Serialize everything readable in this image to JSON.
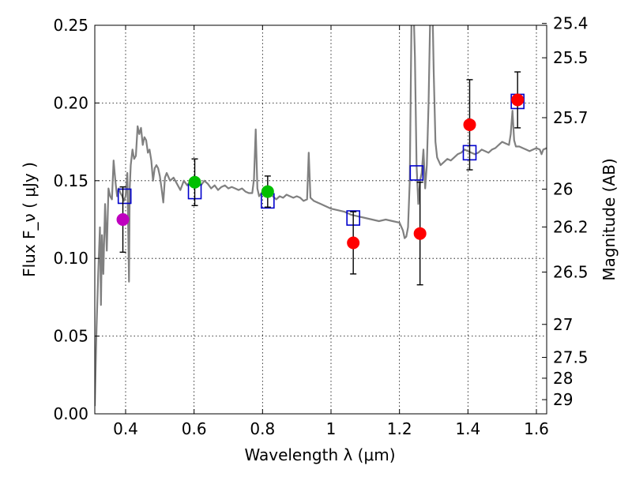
{
  "chart_data": {
    "type": "scatter",
    "xlabel": "Wavelength  λ (μm)",
    "ylabel": "Flux  F_ν  ( μJy )",
    "y2label": "Magnitude (AB)",
    "xlim": [
      0.31,
      1.63
    ],
    "ylim": [
      0.0,
      0.25
    ],
    "grid": true,
    "x_ticks": [
      {
        "value": 0.4,
        "label": "0.4"
      },
      {
        "value": 0.6,
        "label": "0.6"
      },
      {
        "value": 0.8,
        "label": "0.8"
      },
      {
        "value": 1.0,
        "label": "1"
      },
      {
        "value": 1.2,
        "label": "1.2"
      },
      {
        "value": 1.4,
        "label": "1.4"
      },
      {
        "value": 1.6,
        "label": "1.6"
      }
    ],
    "y_ticks": [
      {
        "value": 0.0,
        "label": "0.00"
      },
      {
        "value": 0.05,
        "label": "0.05"
      },
      {
        "value": 0.1,
        "label": "0.10"
      },
      {
        "value": 0.15,
        "label": "0.15"
      },
      {
        "value": 0.2,
        "label": "0.20"
      },
      {
        "value": 0.25,
        "label": "0.25"
      }
    ],
    "y2_ticks": [
      {
        "mag": 25.4,
        "label": "25.4"
      },
      {
        "mag": 25.5,
        "label": "25.5"
      },
      {
        "mag": 25.7,
        "label": "25.7"
      },
      {
        "mag": 26.0,
        "label": "26"
      },
      {
        "mag": 26.2,
        "label": "26.2"
      },
      {
        "mag": 26.5,
        "label": "26.5"
      },
      {
        "mag": 27.0,
        "label": "27"
      },
      {
        "mag": 27.5,
        "label": "27.5"
      },
      {
        "mag": 28.0,
        "label": "28"
      },
      {
        "mag": 29.0,
        "label": "29"
      }
    ],
    "series": [
      {
        "name": "model-sed",
        "kind": "line",
        "color": "#808080",
        "points": [
          [
            0.31,
            0.005
          ],
          [
            0.315,
            0.055
          ],
          [
            0.32,
            0.09
          ],
          [
            0.325,
            0.12
          ],
          [
            0.328,
            0.07
          ],
          [
            0.331,
            0.115
          ],
          [
            0.335,
            0.09
          ],
          [
            0.34,
            0.135
          ],
          [
            0.345,
            0.105
          ],
          [
            0.35,
            0.145
          ],
          [
            0.355,
            0.14
          ],
          [
            0.36,
            0.138
          ],
          [
            0.365,
            0.163
          ],
          [
            0.37,
            0.15
          ],
          [
            0.375,
            0.14
          ],
          [
            0.38,
            0.145
          ],
          [
            0.385,
            0.142
          ],
          [
            0.39,
            0.14
          ],
          [
            0.395,
            0.137
          ],
          [
            0.4,
            0.14
          ],
          [
            0.405,
            0.155
          ],
          [
            0.41,
            0.085
          ],
          [
            0.412,
            0.145
          ],
          [
            0.415,
            0.16
          ],
          [
            0.42,
            0.17
          ],
          [
            0.425,
            0.164
          ],
          [
            0.43,
            0.166
          ],
          [
            0.435,
            0.185
          ],
          [
            0.44,
            0.18
          ],
          [
            0.445,
            0.184
          ],
          [
            0.45,
            0.173
          ],
          [
            0.455,
            0.178
          ],
          [
            0.46,
            0.176
          ],
          [
            0.465,
            0.168
          ],
          [
            0.47,
            0.17
          ],
          [
            0.475,
            0.163
          ],
          [
            0.48,
            0.15
          ],
          [
            0.485,
            0.158
          ],
          [
            0.49,
            0.16
          ],
          [
            0.495,
            0.158
          ],
          [
            0.5,
            0.153
          ],
          [
            0.505,
            0.145
          ],
          [
            0.51,
            0.136
          ],
          [
            0.515,
            0.152
          ],
          [
            0.52,
            0.155
          ],
          [
            0.53,
            0.15
          ],
          [
            0.54,
            0.152
          ],
          [
            0.55,
            0.148
          ],
          [
            0.56,
            0.144
          ],
          [
            0.57,
            0.15
          ],
          [
            0.58,
            0.147
          ],
          [
            0.59,
            0.15
          ],
          [
            0.6,
            0.148
          ],
          [
            0.61,
            0.149
          ],
          [
            0.62,
            0.147
          ],
          [
            0.63,
            0.15
          ],
          [
            0.64,
            0.148
          ],
          [
            0.65,
            0.145
          ],
          [
            0.66,
            0.147
          ],
          [
            0.67,
            0.144
          ],
          [
            0.68,
            0.146
          ],
          [
            0.69,
            0.147
          ],
          [
            0.7,
            0.145
          ],
          [
            0.71,
            0.146
          ],
          [
            0.72,
            0.145
          ],
          [
            0.73,
            0.144
          ],
          [
            0.74,
            0.145
          ],
          [
            0.75,
            0.143
          ],
          [
            0.76,
            0.142
          ],
          [
            0.77,
            0.142
          ],
          [
            0.775,
            0.151
          ],
          [
            0.78,
            0.183
          ],
          [
            0.785,
            0.145
          ],
          [
            0.79,
            0.14
          ],
          [
            0.8,
            0.143
          ],
          [
            0.81,
            0.141
          ],
          [
            0.82,
            0.142
          ],
          [
            0.83,
            0.14
          ],
          [
            0.84,
            0.138
          ],
          [
            0.85,
            0.14
          ],
          [
            0.86,
            0.139
          ],
          [
            0.87,
            0.141
          ],
          [
            0.88,
            0.14
          ],
          [
            0.89,
            0.139
          ],
          [
            0.9,
            0.14
          ],
          [
            0.91,
            0.139
          ],
          [
            0.92,
            0.137
          ],
          [
            0.93,
            0.138
          ],
          [
            0.935,
            0.168
          ],
          [
            0.94,
            0.139
          ],
          [
            0.95,
            0.137
          ],
          [
            0.96,
            0.136
          ],
          [
            0.97,
            0.135
          ],
          [
            0.98,
            0.134
          ],
          [
            0.99,
            0.133
          ],
          [
            1.0,
            0.132
          ],
          [
            1.02,
            0.131
          ],
          [
            1.04,
            0.13
          ],
          [
            1.06,
            0.128
          ],
          [
            1.08,
            0.127
          ],
          [
            1.1,
            0.126
          ],
          [
            1.12,
            0.125
          ],
          [
            1.14,
            0.124
          ],
          [
            1.16,
            0.125
          ],
          [
            1.18,
            0.124
          ],
          [
            1.2,
            0.123
          ],
          [
            1.21,
            0.118
          ],
          [
            1.215,
            0.113
          ],
          [
            1.22,
            0.114
          ],
          [
            1.225,
            0.12
          ],
          [
            1.23,
            0.15
          ],
          [
            1.235,
            0.25
          ],
          [
            1.24,
            0.27
          ],
          [
            1.245,
            0.23
          ],
          [
            1.25,
            0.16
          ],
          [
            1.255,
            0.135
          ],
          [
            1.26,
            0.15
          ],
          [
            1.265,
            0.155
          ],
          [
            1.27,
            0.17
          ],
          [
            1.275,
            0.145
          ],
          [
            1.28,
            0.16
          ],
          [
            1.285,
            0.2
          ],
          [
            1.29,
            0.26
          ],
          [
            1.295,
            0.28
          ],
          [
            1.3,
            0.22
          ],
          [
            1.305,
            0.175
          ],
          [
            1.31,
            0.165
          ],
          [
            1.32,
            0.16
          ],
          [
            1.33,
            0.162
          ],
          [
            1.34,
            0.164
          ],
          [
            1.35,
            0.163
          ],
          [
            1.36,
            0.165
          ],
          [
            1.37,
            0.167
          ],
          [
            1.38,
            0.168
          ],
          [
            1.39,
            0.17
          ],
          [
            1.4,
            0.169
          ],
          [
            1.41,
            0.168
          ],
          [
            1.42,
            0.167
          ],
          [
            1.43,
            0.168
          ],
          [
            1.44,
            0.17
          ],
          [
            1.45,
            0.169
          ],
          [
            1.46,
            0.168
          ],
          [
            1.47,
            0.17
          ],
          [
            1.48,
            0.171
          ],
          [
            1.49,
            0.173
          ],
          [
            1.5,
            0.175
          ],
          [
            1.51,
            0.174
          ],
          [
            1.52,
            0.173
          ],
          [
            1.525,
            0.18
          ],
          [
            1.53,
            0.195
          ],
          [
            1.535,
            0.176
          ],
          [
            1.54,
            0.172
          ],
          [
            1.55,
            0.172
          ],
          [
            1.56,
            0.171
          ],
          [
            1.57,
            0.17
          ],
          [
            1.58,
            0.169
          ],
          [
            1.59,
            0.17
          ],
          [
            1.6,
            0.171
          ],
          [
            1.61,
            0.17
          ],
          [
            1.615,
            0.167
          ],
          [
            1.62,
            0.17
          ],
          [
            1.63,
            0.171
          ]
        ]
      },
      {
        "name": "model-bands",
        "kind": "open-square",
        "color": "#0000cc",
        "points": [
          [
            0.397,
            0.14
          ],
          [
            0.602,
            0.143
          ],
          [
            0.815,
            0.137
          ],
          [
            1.065,
            0.126
          ],
          [
            1.25,
            0.155
          ],
          [
            1.405,
            0.168
          ],
          [
            1.545,
            0.201
          ]
        ]
      },
      {
        "name": "observed-blue",
        "kind": "point",
        "color": "#bf00bf",
        "points": [
          [
            0.392,
            0.125,
            0.021
          ]
        ]
      },
      {
        "name": "observed-optical",
        "kind": "point",
        "color": "#00bf00",
        "points": [
          [
            0.602,
            0.149,
            0.015
          ],
          [
            0.815,
            0.143,
            0.01
          ]
        ]
      },
      {
        "name": "observed-nir",
        "kind": "point",
        "color": "#ff0000",
        "points": [
          [
            1.065,
            0.11,
            0.02
          ],
          [
            1.26,
            0.116,
            0.033
          ],
          [
            1.405,
            0.186,
            0.029
          ],
          [
            1.545,
            0.202,
            0.018
          ]
        ]
      }
    ]
  }
}
